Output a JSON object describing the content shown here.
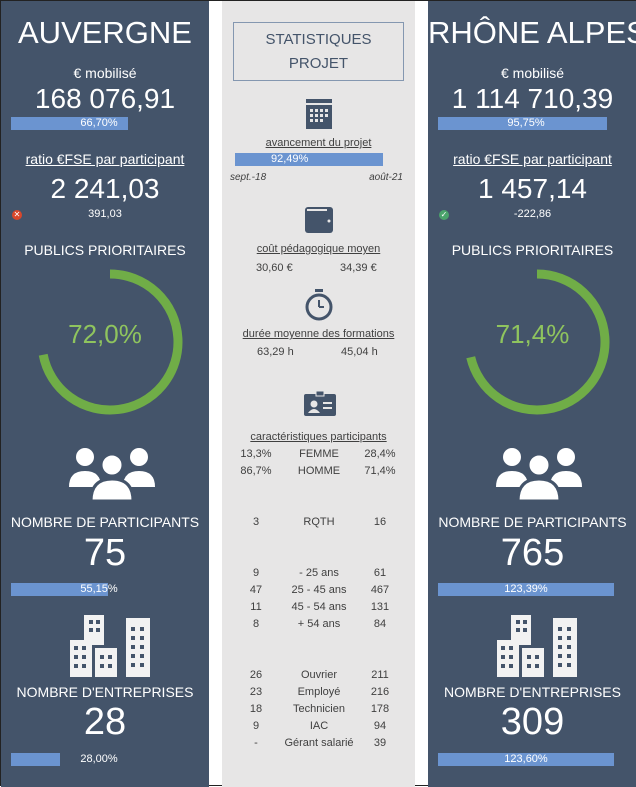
{
  "left": {
    "region": "AUVERGNE",
    "mobilise_label": "€ mobilisé",
    "mobilise_value": "168 076,91",
    "mobilise_pct_label": "66,70%",
    "mobilise_pct": 66.7,
    "ratio_label": "ratio €FSE par participant",
    "ratio_value": "2 241,03",
    "ratio_diff": "391,03",
    "ratio_status": "error",
    "publics_label": "PUBLICS PRIORITAIRES",
    "publics_pct_label": "72,0%",
    "publics_pct": 72.0,
    "participants_label": "NOMBRE DE PARTICIPANTS",
    "participants_value": "75",
    "participants_pct_label": "55,15%",
    "participants_pct": 55.15,
    "entreprises_label": "NOMBRE D'ENTREPRISES",
    "entreprises_value": "28",
    "entreprises_pct_label": "28,00%",
    "entreprises_pct": 28.0
  },
  "right": {
    "region": "RHÔNE ALPES",
    "mobilise_label": "€ mobilisé",
    "mobilise_value": "1 114 710,39",
    "mobilise_pct_label": "95,75%",
    "mobilise_pct": 95.75,
    "ratio_label": "ratio €FSE par participant",
    "ratio_value": "1 457,14",
    "ratio_diff": "-222,86",
    "ratio_status": "ok",
    "publics_label": "PUBLICS PRIORITAIRES",
    "publics_pct_label": "71,4%",
    "publics_pct": 71.4,
    "participants_label": "NOMBRE DE PARTICIPANTS",
    "participants_value": "765",
    "participants_pct_label": "123,39%",
    "participants_pct": 123.39,
    "entreprises_label": "NOMBRE D'ENTREPRISES",
    "entreprises_value": "309",
    "entreprises_pct_label": "123,60%",
    "entreprises_pct": 123.6
  },
  "center": {
    "title_line1": "STATISTIQUES",
    "title_line2": "PROJET",
    "avancement_label": "avancement du projet",
    "avancement_pct_label": "92,49%",
    "avancement_pct": 92.49,
    "start_date": "sept.-18",
    "end_date": "août-21",
    "cout_label": "coût pédagogique moyen",
    "cout_left": "30,60 €",
    "cout_right": "34,39 €",
    "duree_label": "durée moyenne des formations",
    "duree_left": "63,29 h",
    "duree_right": "45,04 h",
    "carac_label": "caractéristiques participants",
    "rows": [
      {
        "left": "13,3%",
        "label": "FEMME",
        "right": "28,4%"
      },
      {
        "left": "86,7%",
        "label": "HOMME",
        "right": "71,4%"
      },
      {
        "left": "3",
        "label": "RQTH",
        "right": "16"
      },
      {
        "left": "9",
        "label": "- 25 ans",
        "right": "61"
      },
      {
        "left": "47",
        "label": "25 - 45 ans",
        "right": "467"
      },
      {
        "left": "11",
        "label": "45 - 54 ans",
        "right": "131"
      },
      {
        "left": "8",
        "label": "+ 54 ans",
        "right": "84"
      },
      {
        "left": "26",
        "label": "Ouvrier",
        "right": "211"
      },
      {
        "left": "23",
        "label": "Employé",
        "right": "216"
      },
      {
        "left": "18",
        "label": "Technicien",
        "right": "178"
      },
      {
        "left": "9",
        "label": "IAC",
        "right": "94"
      },
      {
        "left": "-",
        "label": "Gérant salarié",
        "right": "39"
      }
    ]
  },
  "colors": {
    "panel": "#44546a",
    "bar": "#6b94d0",
    "donut": "#70ad47",
    "center_bg": "#e7e6e6"
  }
}
